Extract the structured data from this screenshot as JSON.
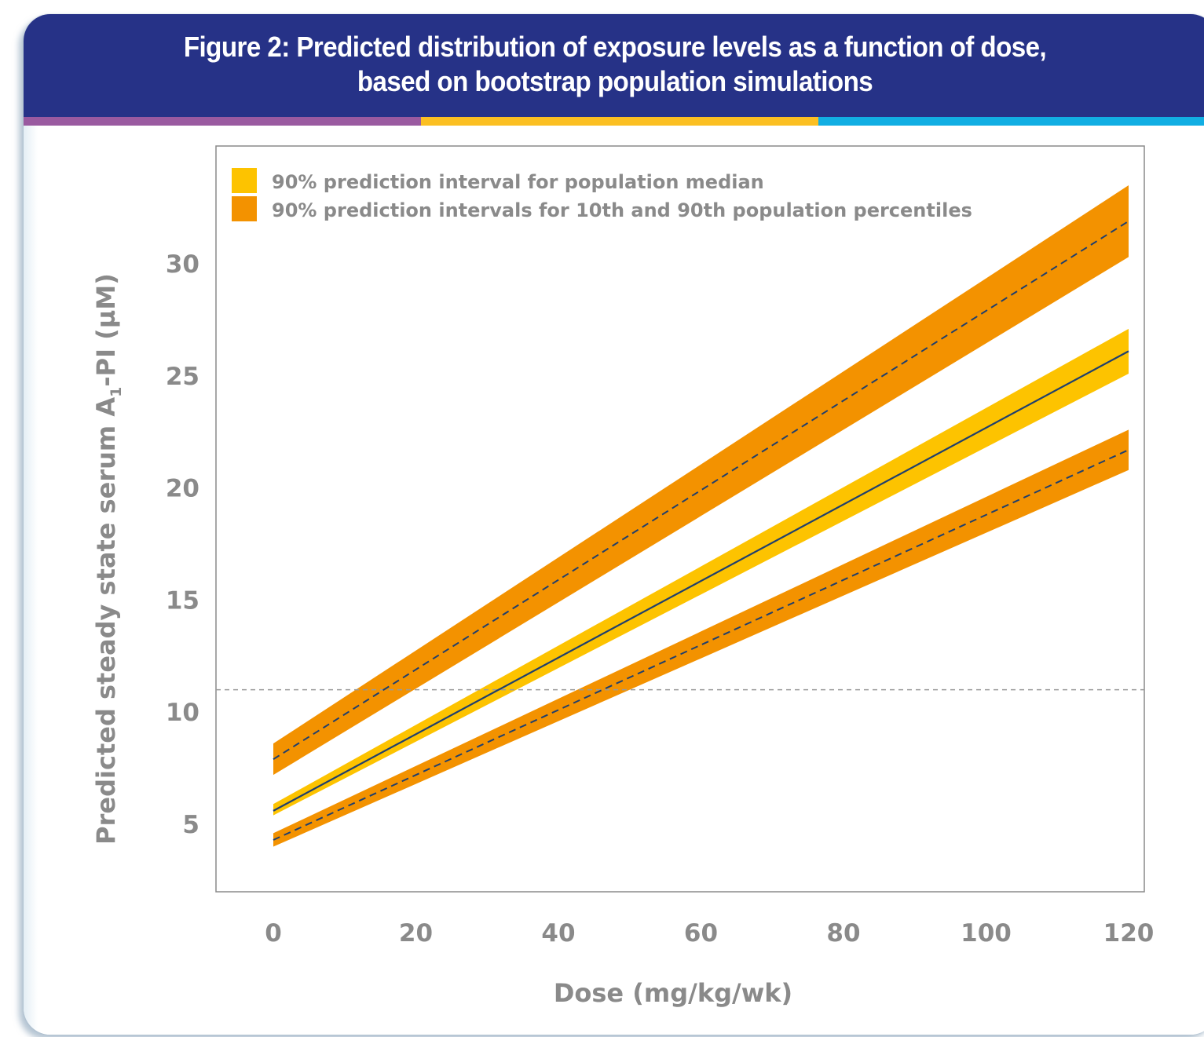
{
  "figure": {
    "title": "Figure 2: Predicted distribution of exposure levels as a function of dose, based on bootstrap population simulations"
  },
  "colors": {
    "header_bg": "#263287",
    "stripe_purple": "#9a5aa0",
    "stripe_yellow": "#fbbf22",
    "stripe_blue": "#12aee3",
    "median_band": "#fdc300",
    "percentile_band": "#f39200",
    "median_line": "#1f3f6e",
    "text_gray": "#8a8a8a"
  },
  "chart_data": {
    "type": "area",
    "xlabel": "Dose (mg/kg/wk)",
    "ylabel_main": "Predicted steady state serum A",
    "ylabel_subscript": "1",
    "ylabel_suffix": "-PI (µM)",
    "xlim": [
      -8,
      120
    ],
    "ylim": [
      1.5,
      32.5
    ],
    "x_ticks": [
      0,
      20,
      40,
      60,
      80,
      100,
      120
    ],
    "y_ticks": [
      5,
      10,
      15,
      20,
      25,
      30
    ],
    "x": [
      0,
      120
    ],
    "legend": [
      {
        "label": "90% prediction interval for population median",
        "color": "#fdc300"
      },
      {
        "label": "90% prediction intervals for 10th and 90th population percentiles",
        "color": "#f39200"
      }
    ],
    "legend_position": "top-left",
    "reference_line": {
      "y": 11,
      "style": "dashed"
    },
    "series": [
      {
        "name": "90th percentile",
        "band": "percentile",
        "lower": [
          7.2,
          30.3
        ],
        "upper": [
          8.6,
          33.5
        ],
        "line": [
          7.9,
          31.9
        ],
        "line_style": "dashed"
      },
      {
        "name": "median",
        "band": "median",
        "lower": [
          5.4,
          25.1
        ],
        "upper": [
          5.9,
          27.1
        ],
        "line": [
          5.6,
          26.1
        ],
        "line_style": "solid"
      },
      {
        "name": "10th percentile",
        "band": "percentile",
        "lower": [
          4.0,
          20.8
        ],
        "upper": [
          4.6,
          22.6
        ],
        "line": [
          4.3,
          21.7
        ],
        "line_style": "dashed"
      }
    ]
  }
}
